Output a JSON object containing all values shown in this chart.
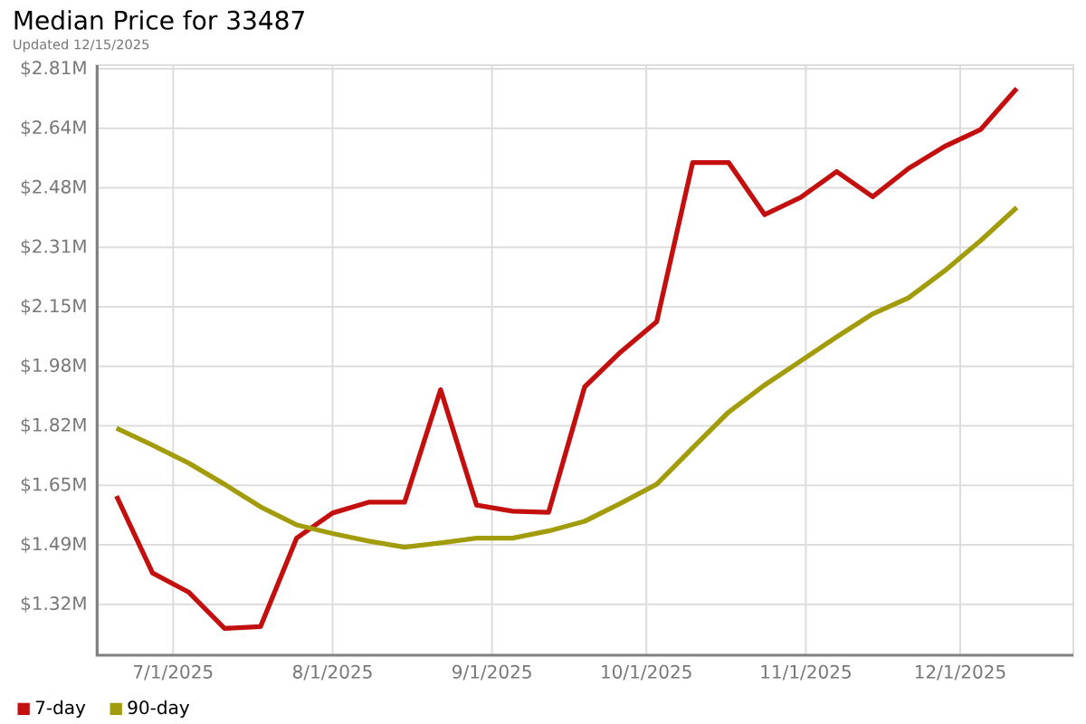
{
  "chart_data": {
    "type": "line",
    "title": "Median Price for 33487",
    "subtitle": "Updated 12/15/2025",
    "x": [
      "2025-06-20",
      "2025-06-27",
      "2025-07-04",
      "2025-07-11",
      "2025-07-18",
      "2025-07-25",
      "2025-08-01",
      "2025-08-08",
      "2025-08-15",
      "2025-08-22",
      "2025-08-29",
      "2025-09-05",
      "2025-09-12",
      "2025-09-19",
      "2025-09-26",
      "2025-10-03",
      "2025-10-10",
      "2025-10-17",
      "2025-10-24",
      "2025-10-31",
      "2025-11-07",
      "2025-11-14",
      "2025-11-21",
      "2025-11-28",
      "2025-12-05",
      "2025-12-12"
    ],
    "series": [
      {
        "name": "7-day",
        "color": "#c40f0f",
        "values": [
          1.621,
          1.407,
          1.354,
          1.253,
          1.258,
          1.504,
          1.574,
          1.604,
          1.604,
          1.917,
          1.596,
          1.579,
          1.576,
          1.925,
          2.022,
          2.106,
          2.549,
          2.549,
          2.404,
          2.452,
          2.524,
          2.454,
          2.533,
          2.594,
          2.641,
          2.755
        ]
      },
      {
        "name": "90-day",
        "color": "#a39c0a",
        "values": [
          1.81,
          1.763,
          1.713,
          1.654,
          1.591,
          1.541,
          1.517,
          1.496,
          1.479,
          1.491,
          1.504,
          1.504,
          1.524,
          1.551,
          1.601,
          1.654,
          1.755,
          1.855,
          1.93,
          1.997,
          2.064,
          2.128,
          2.173,
          2.248,
          2.332,
          2.424
        ]
      }
    ],
    "xlim": [
      "2025-06-16",
      "2025-12-23"
    ],
    "xticks": [
      {
        "value": "2025-07-01",
        "label": "7/1/2025"
      },
      {
        "value": "2025-08-01",
        "label": "8/1/2025"
      },
      {
        "value": "2025-09-01",
        "label": "9/1/2025"
      },
      {
        "value": "2025-10-01",
        "label": "10/1/2025"
      },
      {
        "value": "2025-11-01",
        "label": "11/1/2025"
      },
      {
        "value": "2025-12-01",
        "label": "12/1/2025"
      }
    ],
    "ylim": [
      1.175,
      2.82
    ],
    "yticks": [
      {
        "value": 1.32,
        "label": "$1.32M"
      },
      {
        "value": 1.4856,
        "label": "$1.49M"
      },
      {
        "value": 1.6511,
        "label": "$1.65M"
      },
      {
        "value": 1.8167,
        "label": "$1.82M"
      },
      {
        "value": 1.9822,
        "label": "$1.98M"
      },
      {
        "value": 2.1478,
        "label": "$2.15M"
      },
      {
        "value": 2.3133,
        "label": "$2.31M"
      },
      {
        "value": 2.4789,
        "label": "$2.48M"
      },
      {
        "value": 2.6444,
        "label": "$2.64M"
      },
      {
        "value": 2.81,
        "label": "$2.81M"
      }
    ],
    "grid": true,
    "legend": "bottom left",
    "marker": "none",
    "line_style": "solid"
  }
}
